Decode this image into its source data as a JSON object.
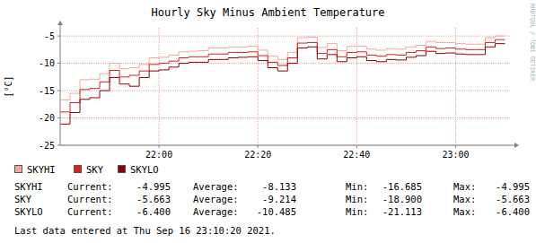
{
  "chart_data": {
    "type": "line",
    "line_style": "step",
    "title": "Hourly Sky Minus Ambient Temperature",
    "y_label": "[°C]",
    "watermark": "RRDTOOL / TOBI OETIKER",
    "footer": "Last data entered at Thu Sep 16 23:10:20 2021.",
    "legend": "bottom",
    "grid": true,
    "xlim": [
      1300,
      1391
    ],
    "xticks": [
      {
        "value": 1320,
        "label": "22:00"
      },
      {
        "value": 1340,
        "label": "22:20"
      },
      {
        "value": 1360,
        "label": "22:40"
      },
      {
        "value": 1380,
        "label": "23:00"
      }
    ],
    "ylim": [
      -25,
      -3.5
    ],
    "yticks": [
      -5,
      -10,
      -15,
      -20,
      -25
    ],
    "x": [
      1301,
      1303,
      1305,
      1307,
      1309,
      1311,
      1313,
      1315,
      1317,
      1319,
      1321,
      1323,
      1325,
      1327,
      1329,
      1331,
      1333,
      1335,
      1337,
      1339,
      1341,
      1343,
      1345,
      1347,
      1349,
      1351,
      1353,
      1355,
      1357,
      1359,
      1361,
      1363,
      1365,
      1367,
      1369,
      1371,
      1373,
      1375,
      1377,
      1379,
      1381,
      1383,
      1385,
      1387,
      1389
    ],
    "stats_labels": [
      "Current:",
      "Average:",
      "Min:",
      "Max:"
    ],
    "series": [
      {
        "name": "SKYHI",
        "color": "#f5a898",
        "values": [
          -16.685,
          -15.5,
          -13.0,
          -12.9,
          -11.9,
          -10.0,
          -11.0,
          -10.8,
          -10.2,
          -9.0,
          -8.9,
          -8.5,
          -7.9,
          -7.8,
          -7.7,
          -7.2,
          -7.2,
          -7.0,
          -7.0,
          -6.9,
          -7.6,
          -8.7,
          -9.3,
          -8.0,
          -5.3,
          -5.2,
          -7.1,
          -6.4,
          -7.7,
          -6.9,
          -6.9,
          -7.4,
          -7.6,
          -7.3,
          -7.4,
          -7.0,
          -6.7,
          -6.0,
          -6.2,
          -6.2,
          -6.4,
          -6.5,
          -6.5,
          -5.3,
          -4.995
        ],
        "stats": [
          "-4.995",
          "-8.133",
          "-16.685",
          "-4.995"
        ]
      },
      {
        "name": "SKY",
        "color": "#dd1f1f",
        "values": [
          -18.9,
          -17.2,
          -14.8,
          -14.6,
          -13.4,
          -11.3,
          -12.5,
          -12.2,
          -11.4,
          -10.2,
          -10.0,
          -9.6,
          -9.0,
          -8.8,
          -8.8,
          -8.3,
          -8.3,
          -8.0,
          -8.0,
          -7.9,
          -8.6,
          -9.8,
          -10.4,
          -9.0,
          -6.3,
          -6.2,
          -8.2,
          -7.5,
          -8.8,
          -8.0,
          -7.9,
          -8.5,
          -8.7,
          -8.4,
          -8.5,
          -8.0,
          -7.7,
          -7.0,
          -7.3,
          -7.2,
          -7.4,
          -7.5,
          -7.5,
          -6.2,
          -5.663
        ],
        "stats": [
          "-5.663",
          "-9.214",
          "-18.900",
          "-5.663"
        ]
      },
      {
        "name": "SKYLO",
        "color": "#8e0000",
        "values": [
          -21.113,
          -19.0,
          -16.6,
          -16.3,
          -15.0,
          -12.6,
          -13.8,
          -14.2,
          -12.6,
          -11.4,
          -11.2,
          -10.7,
          -10.0,
          -9.8,
          -9.8,
          -9.3,
          -9.3,
          -9.0,
          -8.9,
          -8.8,
          -9.5,
          -10.8,
          -11.4,
          -10.0,
          -7.2,
          -7.0,
          -9.2,
          -8.4,
          -9.7,
          -9.0,
          -8.8,
          -9.5,
          -9.7,
          -9.3,
          -9.4,
          -8.9,
          -8.6,
          -7.8,
          -8.2,
          -8.1,
          -8.3,
          -8.4,
          -8.4,
          -7.0,
          -6.4
        ],
        "stats": [
          "-6.400",
          "-10.485",
          "-21.113",
          "-6.400"
        ]
      }
    ]
  }
}
